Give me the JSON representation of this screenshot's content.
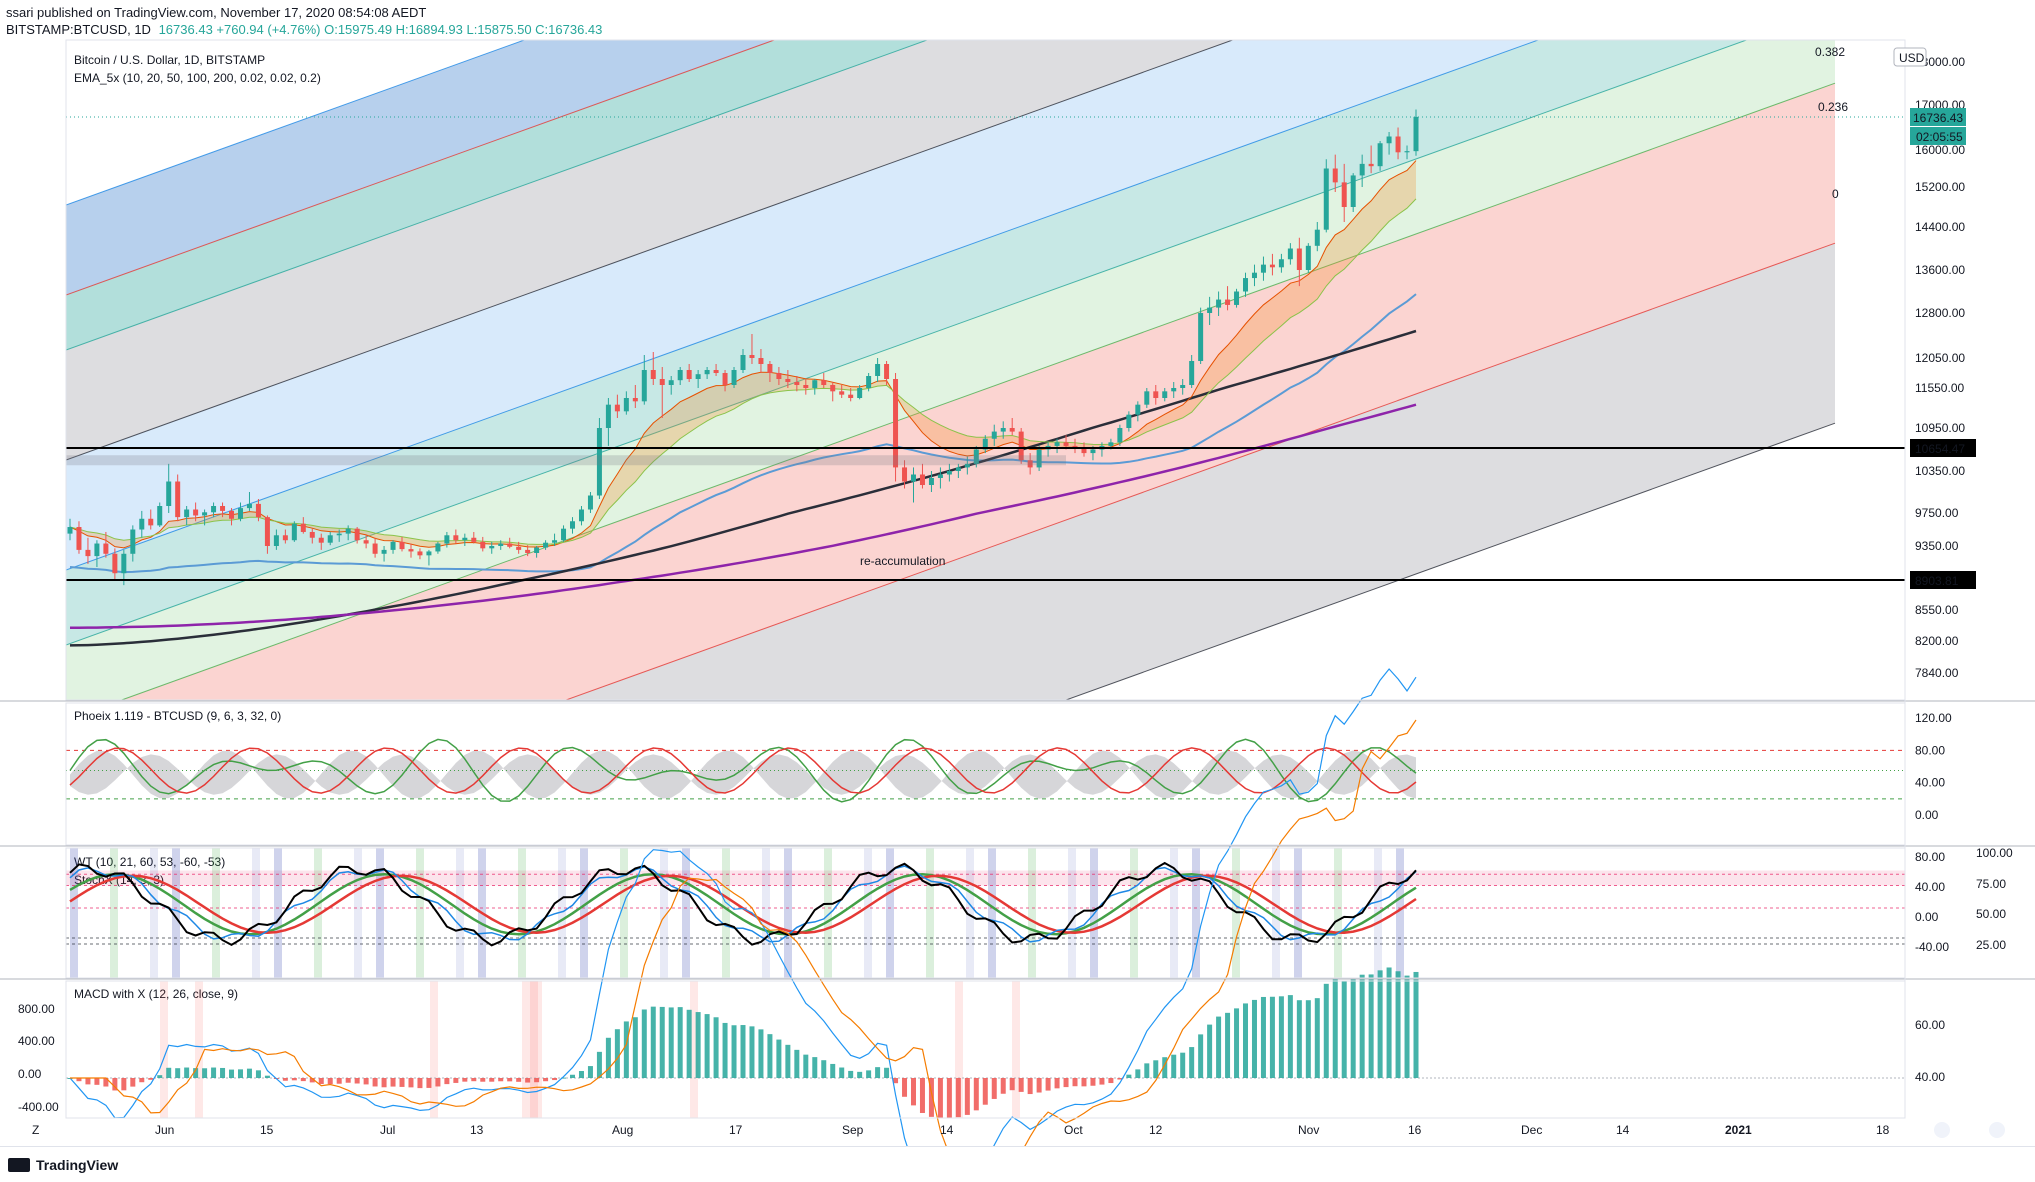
{
  "header": {
    "published": "ssari published on TradingView.com, November 17, 2020 08:54:08 AEDT",
    "symbol": "BITSTAMP:BTCUSD, 1D",
    "change": "16736.43 +760.94 (+4.76%) O:15975.49 H:16894.93 L:15875.50 C:16736.43"
  },
  "footer": {
    "brand": "TradingView"
  },
  "colors": {
    "up": "#26a69a",
    "down": "#ef5350",
    "ema10": "#f57c00",
    "ema50": "#5b9bd5",
    "ema100": "#2a2e39",
    "ema200": "#8e24aa",
    "text_red": "#e53935"
  },
  "chart_data": [
    {
      "type": "candlestick",
      "title": "Bitcoin / U.S. Dollar, 1D, BITSTAMP",
      "subtitle": "EMA_5x (10, 20, 50, 100, 200, 0.02, 0.02, 0.2)",
      "currency": "USD",
      "price_ticks": [
        "18000.00",
        "17000.00",
        "16000.00",
        "15200.00",
        "14400.00",
        "13600.00",
        "12800.00",
        "12050.00",
        "11550.00",
        "10950.00",
        "10350.00",
        "9750.00",
        "9350.00",
        "8900.00",
        "8550.00",
        "8200.00",
        "7840.00"
      ],
      "x_ticks": [
        "Jun",
        "15",
        "Jul",
        "13",
        "Aug",
        "17",
        "Sep",
        "14",
        "Oct",
        "12",
        "Nov",
        "16",
        "Dec",
        "14",
        "2021",
        "18"
      ],
      "last_price": "16736.43",
      "countdown": "02:05:55",
      "levels": [
        "10654.47",
        "8903.81"
      ],
      "fib_labels": [
        "0.382",
        "0.236",
        "0"
      ],
      "annotation": "re-accumulation",
      "candles_approx": [
        [
          9500,
          9680,
          9420,
          9580
        ],
        [
          9580,
          9650,
          9250,
          9300
        ],
        [
          9300,
          9450,
          9120,
          9220
        ],
        [
          9220,
          9420,
          9080,
          9380
        ],
        [
          9380,
          9520,
          9200,
          9250
        ],
        [
          9250,
          9320,
          8900,
          9000
        ],
        [
          9000,
          9300,
          8850,
          9250
        ],
        [
          9250,
          9600,
          9150,
          9550
        ],
        [
          9550,
          9780,
          9450,
          9680
        ],
        [
          9680,
          9800,
          9550,
          9600
        ],
        [
          9600,
          9900,
          9580,
          9850
        ],
        [
          9850,
          10450,
          9750,
          10200
        ],
        [
          10200,
          10300,
          9650,
          9700
        ],
        [
          9700,
          9850,
          9600,
          9800
        ],
        [
          9800,
          9900,
          9650,
          9720
        ],
        [
          9720,
          9800,
          9600,
          9760
        ],
        [
          9760,
          9900,
          9700,
          9850
        ],
        [
          9850,
          9900,
          9700,
          9780
        ],
        [
          9780,
          9820,
          9600,
          9680
        ],
        [
          9680,
          9900,
          9650,
          9820
        ],
        [
          9820,
          10050,
          9780,
          9880
        ],
        [
          9880,
          9950,
          9650,
          9700
        ],
        [
          9700,
          9720,
          9250,
          9350
        ],
        [
          9350,
          9550,
          9300,
          9480
        ],
        [
          9480,
          9550,
          9380,
          9420
        ],
        [
          9420,
          9650,
          9400,
          9620
        ],
        [
          9620,
          9700,
          9500,
          9520
        ],
        [
          9520,
          9560,
          9380,
          9450
        ],
        [
          9450,
          9500,
          9300,
          9390
        ],
        [
          9390,
          9520,
          9360,
          9480
        ],
        [
          9480,
          9550,
          9400,
          9500
        ],
        [
          9500,
          9600,
          9420,
          9560
        ],
        [
          9560,
          9580,
          9380,
          9420
        ],
        [
          9420,
          9480,
          9320,
          9380
        ],
        [
          9380,
          9450,
          9200,
          9250
        ],
        [
          9250,
          9350,
          9150,
          9300
        ],
        [
          9300,
          9420,
          9250,
          9400
        ],
        [
          9400,
          9460,
          9280,
          9310
        ],
        [
          9310,
          9380,
          9200,
          9280
        ],
        [
          9280,
          9320,
          9180,
          9230
        ],
        [
          9230,
          9300,
          9100,
          9280
        ],
        [
          9280,
          9400,
          9250,
          9380
        ],
        [
          9380,
          9520,
          9330,
          9480
        ],
        [
          9480,
          9550,
          9380,
          9420
        ],
        [
          9420,
          9500,
          9350,
          9450
        ],
        [
          9450,
          9520,
          9380,
          9400
        ],
        [
          9400,
          9460,
          9280,
          9320
        ],
        [
          9320,
          9400,
          9250,
          9350
        ],
        [
          9350,
          9420,
          9300,
          9380
        ],
        [
          9380,
          9450,
          9320,
          9340
        ],
        [
          9340,
          9400,
          9250,
          9300
        ],
        [
          9300,
          9360,
          9220,
          9260
        ],
        [
          9260,
          9350,
          9200,
          9330
        ],
        [
          9330,
          9420,
          9300,
          9390
        ],
        [
          9390,
          9500,
          9350,
          9420
        ],
        [
          9420,
          9600,
          9400,
          9560
        ],
        [
          9560,
          9700,
          9500,
          9650
        ],
        [
          9650,
          9850,
          9600,
          9800
        ],
        [
          9800,
          10050,
          9750,
          10000
        ],
        [
          10000,
          11100,
          9950,
          10950
        ],
        [
          10950,
          11400,
          10700,
          11300
        ],
        [
          11300,
          11450,
          11100,
          11200
        ],
        [
          11200,
          11500,
          11150,
          11400
        ],
        [
          11400,
          11600,
          11250,
          11350
        ],
        [
          11350,
          12100,
          11300,
          11850
        ],
        [
          11850,
          12150,
          11600,
          11700
        ],
        [
          11700,
          11900,
          11100,
          11600
        ],
        [
          11600,
          11750,
          11450,
          11680
        ],
        [
          11680,
          11900,
          11600,
          11850
        ],
        [
          11850,
          11950,
          11650,
          11700
        ],
        [
          11700,
          11850,
          11550,
          11780
        ],
        [
          11780,
          11900,
          11700,
          11850
        ],
        [
          11850,
          11950,
          11750,
          11800
        ],
        [
          11800,
          11850,
          11500,
          11600
        ],
        [
          11600,
          11900,
          11550,
          11850
        ],
        [
          11850,
          12200,
          11800,
          12100
        ],
        [
          12100,
          12450,
          11950,
          12050
        ],
        [
          12050,
          12200,
          11800,
          11950
        ],
        [
          11950,
          12000,
          11650,
          11800
        ],
        [
          11800,
          11900,
          11600,
          11700
        ],
        [
          11700,
          11850,
          11550,
          11650
        ],
        [
          11650,
          11750,
          11500,
          11600
        ],
        [
          11600,
          11700,
          11450,
          11550
        ],
        [
          11550,
          11700,
          11450,
          11680
        ],
        [
          11680,
          11800,
          11550,
          11600
        ],
        [
          11600,
          11650,
          11350,
          11500
        ],
        [
          11500,
          11600,
          11400,
          11450
        ],
        [
          11450,
          11550,
          11350,
          11400
        ],
        [
          11400,
          11600,
          11380,
          11550
        ],
        [
          11550,
          11800,
          11500,
          11750
        ],
        [
          11750,
          12050,
          11650,
          11950
        ],
        [
          11950,
          12000,
          11600,
          11700
        ],
        [
          11700,
          11800,
          10200,
          10400
        ],
        [
          10400,
          10500,
          10100,
          10200
        ],
        [
          10200,
          10400,
          9900,
          10300
        ],
        [
          10300,
          10450,
          10100,
          10150
        ],
        [
          10150,
          10350,
          10050,
          10250
        ],
        [
          10250,
          10400,
          10100,
          10300
        ],
        [
          10300,
          10450,
          10200,
          10350
        ],
        [
          10350,
          10450,
          10250,
          10400
        ],
        [
          10400,
          10550,
          10300,
          10450
        ],
        [
          10450,
          10700,
          10400,
          10650
        ],
        [
          10650,
          10850,
          10600,
          10800
        ],
        [
          10800,
          11000,
          10700,
          10900
        ],
        [
          10900,
          11050,
          10800,
          10950
        ],
        [
          10950,
          11100,
          10850,
          10900
        ],
        [
          10900,
          10950,
          10450,
          10500
        ],
        [
          10500,
          10600,
          10300,
          10400
        ],
        [
          10400,
          10700,
          10350,
          10650
        ],
        [
          10650,
          10750,
          10550,
          10700
        ],
        [
          10700,
          10800,
          10600,
          10750
        ],
        [
          10750,
          10850,
          10650,
          10700
        ],
        [
          10700,
          10800,
          10600,
          10680
        ],
        [
          10680,
          10750,
          10550,
          10600
        ],
        [
          10600,
          10700,
          10500,
          10650
        ],
        [
          10650,
          10750,
          10550,
          10700
        ],
        [
          10700,
          10800,
          10650,
          10750
        ],
        [
          10750,
          11000,
          10700,
          10950
        ],
        [
          10950,
          11200,
          10900,
          11150
        ],
        [
          11150,
          11350,
          11050,
          11300
        ],
        [
          11300,
          11550,
          11250,
          11500
        ],
        [
          11500,
          11600,
          11300,
          11400
        ],
        [
          11400,
          11550,
          11350,
          11500
        ],
        [
          11500,
          11650,
          11400,
          11550
        ],
        [
          11550,
          11700,
          11450,
          11600
        ],
        [
          11600,
          12100,
          11550,
          12000
        ],
        [
          12000,
          12900,
          11950,
          12800
        ],
        [
          12800,
          13100,
          12600,
          12900
        ],
        [
          12900,
          13200,
          12750,
          13050
        ],
        [
          13050,
          13300,
          12850,
          12950
        ],
        [
          12950,
          13250,
          12900,
          13200
        ],
        [
          13200,
          13550,
          13100,
          13450
        ],
        [
          13450,
          13700,
          13300,
          13550
        ],
        [
          13550,
          13850,
          13400,
          13700
        ],
        [
          13700,
          13900,
          13500,
          13650
        ],
        [
          13650,
          13900,
          13550,
          13800
        ],
        [
          13800,
          14100,
          13700,
          14000
        ],
        [
          14000,
          14200,
          13300,
          13600
        ],
        [
          13600,
          14100,
          13550,
          14050
        ],
        [
          14050,
          14500,
          13950,
          14350
        ],
        [
          14350,
          15800,
          14300,
          15600
        ],
        [
          15600,
          15900,
          15100,
          15300
        ],
        [
          15300,
          15700,
          14500,
          14800
        ],
        [
          14800,
          15500,
          14700,
          15450
        ],
        [
          15450,
          15900,
          15200,
          15700
        ],
        [
          15700,
          16100,
          15500,
          15650
        ],
        [
          15650,
          16200,
          15550,
          16150
        ],
        [
          16150,
          16400,
          15900,
          16300
        ],
        [
          16300,
          16500,
          15800,
          15950
        ],
        [
          15950,
          16100,
          15800,
          15975
        ],
        [
          15975,
          16900,
          15875,
          16736
        ]
      ]
    },
    {
      "type": "line",
      "title": "Phoeix 1.119 - BTCUSD (9, 6, 3, 32, 0)",
      "y_ticks": [
        "120.00",
        "80.00",
        "40.00",
        "0.00"
      ]
    },
    {
      "type": "line",
      "title": "WT (10, 21, 60, 53, -60, -53)",
      "subtitle": "StochX (14, 3, 3)",
      "y_ticks_left": [
        "80.00",
        "40.00",
        "0.00",
        "-40.00"
      ],
      "y_ticks_right": [
        "100.00",
        "75.00",
        "50.00",
        "25.00"
      ]
    },
    {
      "type": "bar",
      "title": "MACD with X (12, 26, close, 9)",
      "y_ticks_left": [
        "800.00",
        "400.00",
        "0.00",
        "-400.00"
      ],
      "y_ticks_right": [
        "60.00",
        "40.00"
      ]
    }
  ]
}
